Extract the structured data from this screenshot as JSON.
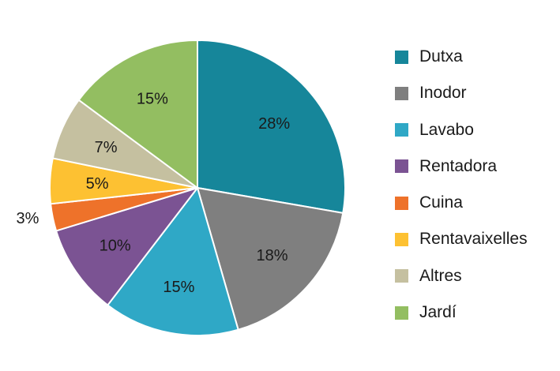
{
  "chart_data": {
    "type": "pie",
    "title": "",
    "legend_position": "right",
    "slices": [
      {
        "label": "Dutxa",
        "value": 28,
        "display": "28%",
        "color": "#16869A"
      },
      {
        "label": "Inodor",
        "value": 18,
        "display": "18%",
        "color": "#7F7F7F"
      },
      {
        "label": "Lavabo",
        "value": 15,
        "display": "15%",
        "color": "#2FA8C6"
      },
      {
        "label": "Rentadora",
        "value": 10,
        "display": "10%",
        "color": "#7B5393"
      },
      {
        "label": "Cuina",
        "value": 3,
        "display": "3%",
        "color": "#EE722A"
      },
      {
        "label": "Rentavaixelles",
        "value": 5,
        "display": "5%",
        "color": "#FDC132"
      },
      {
        "label": "Altres",
        "value": 7,
        "display": "7%",
        "color": "#C5C0A0"
      },
      {
        "label": "Jardí",
        "value": 15,
        "display": "15%",
        "color": "#93BE61"
      }
    ]
  }
}
